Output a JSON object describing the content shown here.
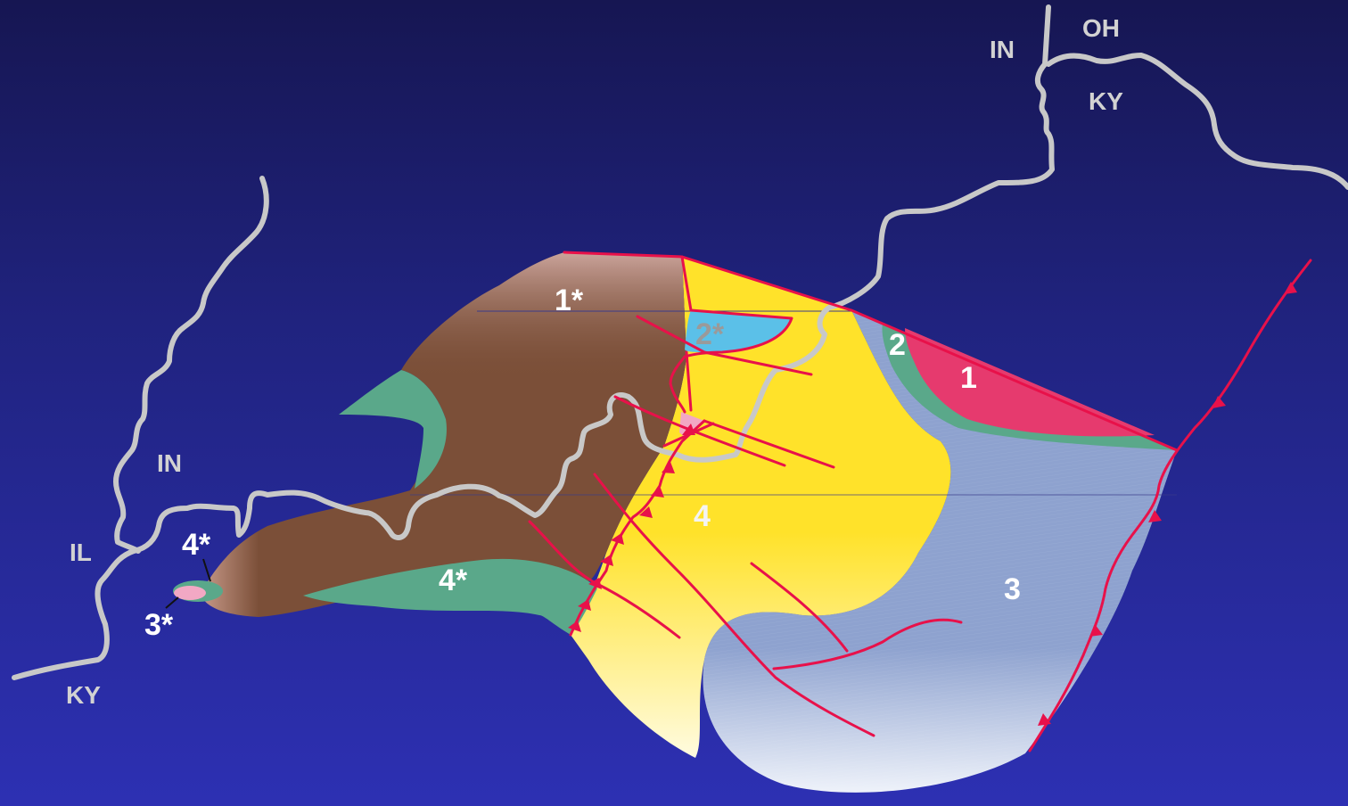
{
  "states": {
    "in_ne": "IN",
    "oh": "OH",
    "ky_ne": "KY",
    "in_w": "IN",
    "il": "IL",
    "ky_sw": "KY"
  },
  "zones": {
    "z1": "1",
    "z1s": "1*",
    "z2": "2",
    "z2s": "2*",
    "z3": "3",
    "z3s": "3*",
    "z4": "4",
    "z4s_small": "4*",
    "z4s": "4*"
  },
  "colors": {
    "background_top": "#161652",
    "background_bottom": "#2d30b3",
    "state_border": "#c8c8c8",
    "fault": "#e8114a",
    "zone_1": "#e63a6e",
    "zone_1_star": "#7b4f38",
    "zone_2": "#5aa88a",
    "zone_2_star": "#5bc0e8",
    "zone_3": "#8fa3d1",
    "zone_3_star": "#f2a8c4",
    "zone_4": "#ffe033",
    "zone_4_star": "#5aa88a"
  }
}
